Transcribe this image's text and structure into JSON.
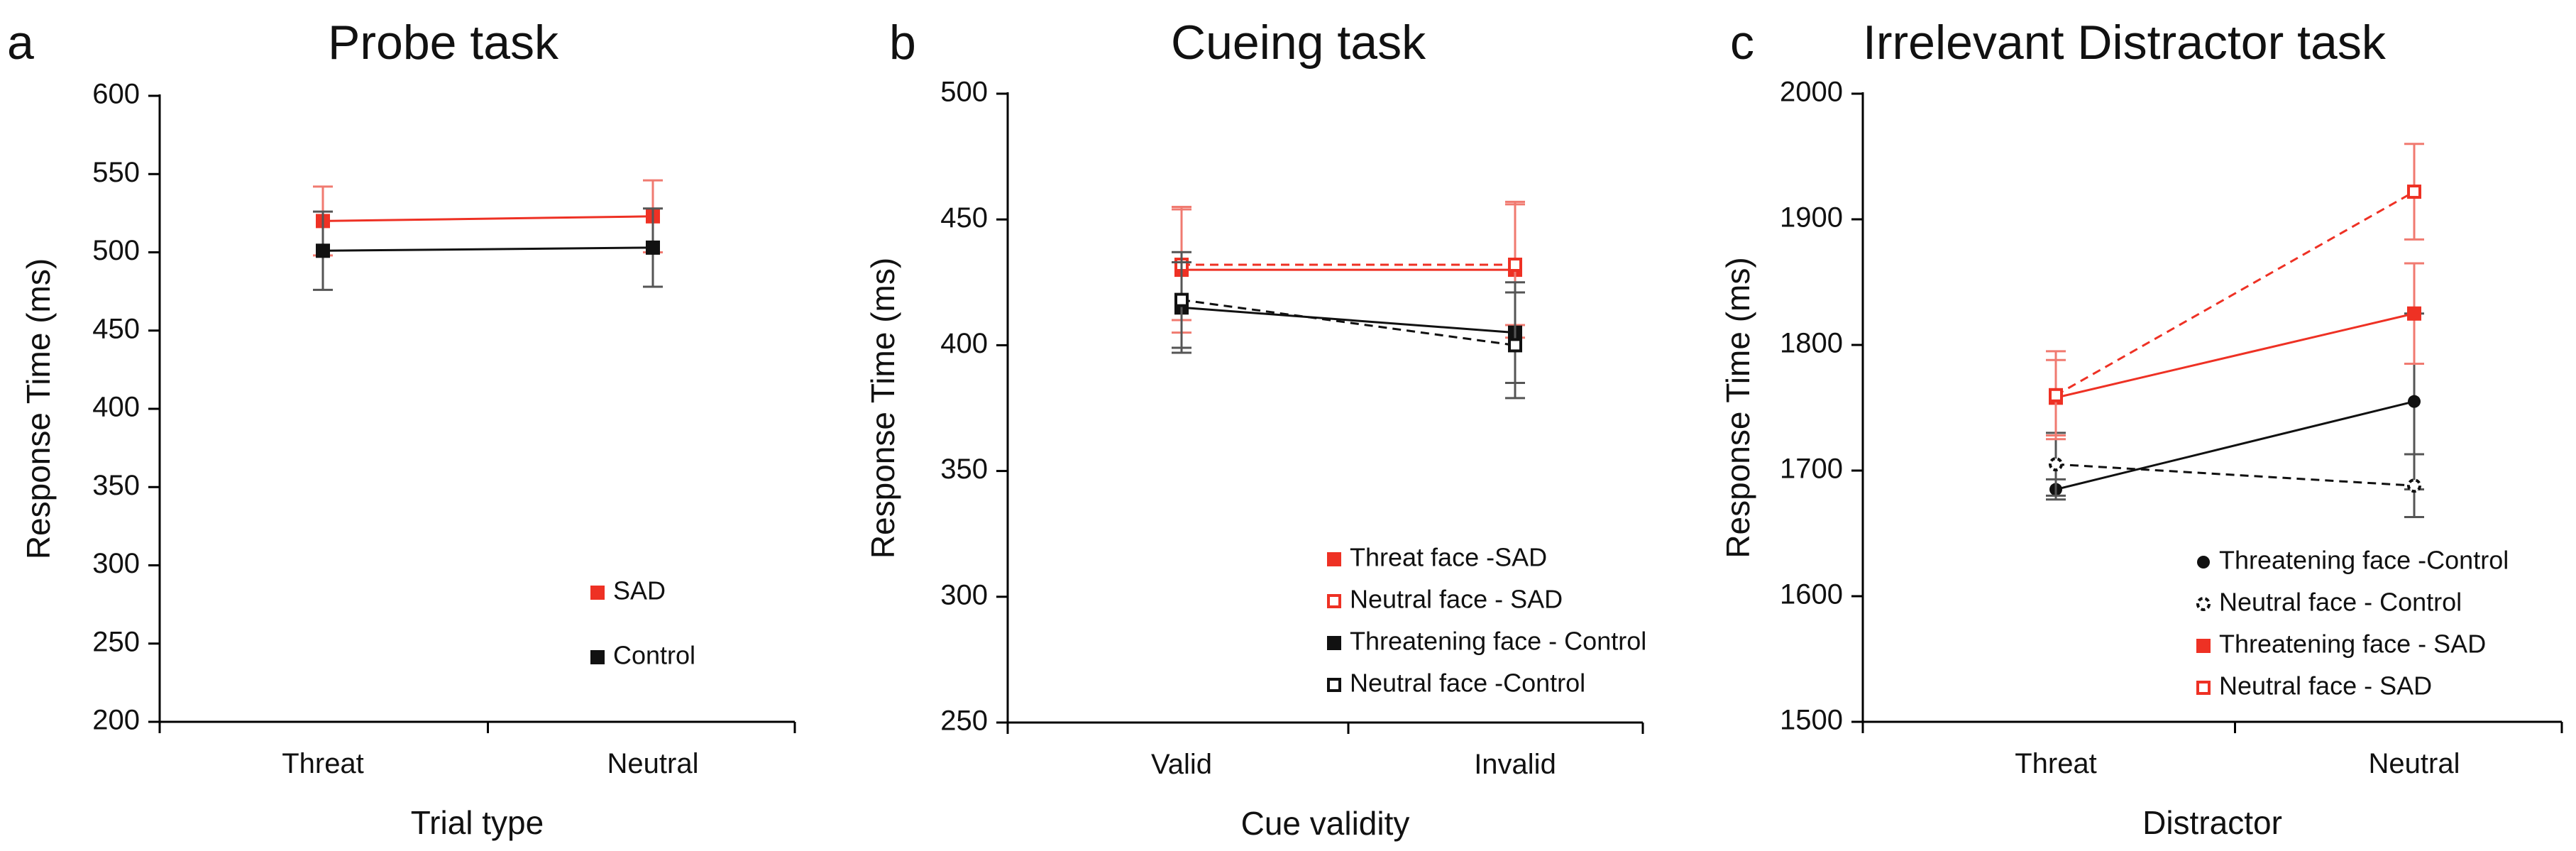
{
  "figure": {
    "colors": {
      "sad": "#ee3124",
      "control": "#111111",
      "sad_error": "#f07a70",
      "control_error": "#555555"
    }
  },
  "chart_data": [
    {
      "type": "line",
      "panel": "a",
      "title": "Probe task",
      "xlabel": "Trial type",
      "ylabel": "Response Time (ms)",
      "categories": [
        "Threat",
        "Neutral"
      ],
      "ylim": [
        200,
        600
      ],
      "yticks": [
        200,
        250,
        300,
        350,
        400,
        450,
        500,
        550,
        600
      ],
      "legend_position": "lower-right",
      "series": [
        {
          "name": "SAD",
          "color": "#ee3124",
          "marker": "filled-square",
          "dashed": false,
          "values": [
            520,
            523
          ],
          "errors": [
            22,
            23
          ]
        },
        {
          "name": "Control",
          "color": "#111111",
          "marker": "filled-square",
          "dashed": false,
          "values": [
            501,
            503
          ],
          "errors": [
            25,
            25
          ]
        }
      ]
    },
    {
      "type": "line",
      "panel": "b",
      "title": "Cueing task",
      "xlabel": "Cue validity",
      "ylabel": "Response Time (ms)",
      "categories": [
        "Valid",
        "Invalid"
      ],
      "ylim": [
        250,
        500
      ],
      "yticks": [
        250,
        300,
        350,
        400,
        450,
        500
      ],
      "legend_position": "lower-right",
      "series": [
        {
          "name": "Threat face -SAD",
          "color": "#ee3124",
          "marker": "filled-square",
          "dashed": false,
          "values": [
            430,
            430
          ],
          "errors": [
            25,
            27
          ]
        },
        {
          "name": "Neutral face - SAD",
          "color": "#ee3124",
          "marker": "open-square",
          "dashed": true,
          "values": [
            432,
            432
          ],
          "errors": [
            22,
            24
          ]
        },
        {
          "name": "Threatening face - Control",
          "color": "#111111",
          "marker": "filled-square",
          "dashed": false,
          "values": [
            415,
            405
          ],
          "errors": [
            18,
            20
          ]
        },
        {
          "name": "Neutral face -Control",
          "color": "#111111",
          "marker": "open-square",
          "dashed": true,
          "values": [
            418,
            400
          ],
          "errors": [
            19,
            21
          ]
        }
      ]
    },
    {
      "type": "line",
      "panel": "c",
      "title": "Irrelevant Distractor task",
      "xlabel": "Distractor",
      "ylabel": "Response Time (ms)",
      "categories": [
        "Threat",
        "Neutral"
      ],
      "ylim": [
        1500,
        2000
      ],
      "yticks": [
        1500,
        1600,
        1700,
        1800,
        1900,
        2000
      ],
      "legend_position": "lower-right",
      "series": [
        {
          "name": "Threatening face -Control",
          "color": "#111111",
          "marker": "filled-circle",
          "dashed": false,
          "values": [
            1685,
            1755
          ],
          "errors": [
            8,
            70
          ]
        },
        {
          "name": "Neutral face - Control",
          "color": "#111111",
          "marker": "open-circle",
          "dashed": true,
          "values": [
            1705,
            1688
          ],
          "errors": [
            25,
            25
          ]
        },
        {
          "name": "Threatening face - SAD",
          "color": "#ee3124",
          "marker": "filled-square",
          "dashed": false,
          "values": [
            1758,
            1825
          ],
          "errors": [
            30,
            40
          ]
        },
        {
          "name": "Neutral face - SAD",
          "color": "#ee3124",
          "marker": "open-square",
          "dashed": true,
          "values": [
            1760,
            1922
          ],
          "errors": [
            35,
            38
          ]
        }
      ]
    }
  ]
}
